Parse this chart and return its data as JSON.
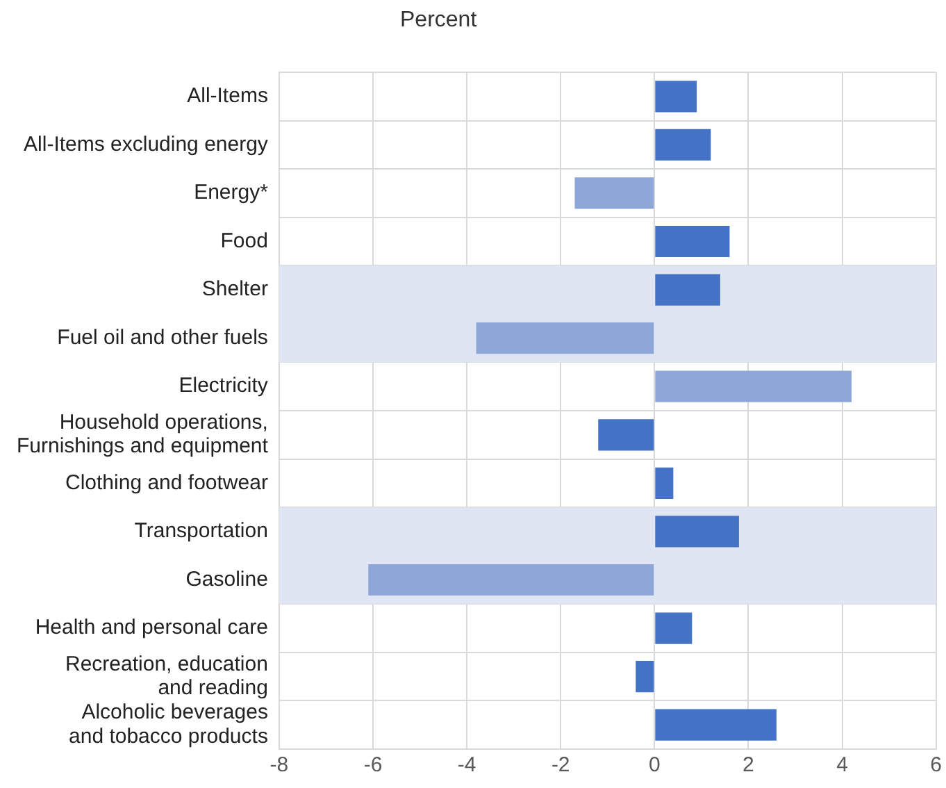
{
  "chart_data": {
    "type": "bar",
    "orientation": "horizontal",
    "xlabel": "Percent",
    "categories": [
      "All-Items",
      "All-Items excluding energy",
      "Energy*",
      "Food",
      "Shelter",
      "Fuel oil and other fuels",
      "Electricity",
      "Household operations,\nFurnishings and equipment",
      "Clothing and footwear",
      "Transportation",
      "Gasoline",
      "Health and personal care",
      "Recreation, education\nand reading",
      "Alcoholic beverages\nand tobacco products"
    ],
    "values": [
      0.9,
      1.2,
      -1.7,
      1.6,
      1.4,
      -3.8,
      4.2,
      -1.2,
      0.4,
      1.8,
      -6.1,
      0.8,
      -0.4,
      2.6
    ],
    "colors": [
      "#4472c4",
      "#4472c4",
      "#8ea6d8",
      "#4472c4",
      "#4472c4",
      "#8ea6d8",
      "#8ea6d8",
      "#4472c4",
      "#4472c4",
      "#4472c4",
      "#8ea6d8",
      "#4472c4",
      "#4472c4",
      "#4472c4"
    ],
    "xlim": [
      -8,
      6
    ],
    "xticks": [
      -8,
      -6,
      -4,
      -2,
      0,
      2,
      4,
      6
    ],
    "grid": true,
    "legend": false,
    "bands": [
      {
        "axis": "y",
        "from": "Shelter",
        "to": "Fuel oil and other fuels",
        "color": "#dfe5f2"
      },
      {
        "axis": "y",
        "from": "Transportation",
        "to": "Gasoline",
        "color": "#dfe5f2"
      }
    ]
  }
}
